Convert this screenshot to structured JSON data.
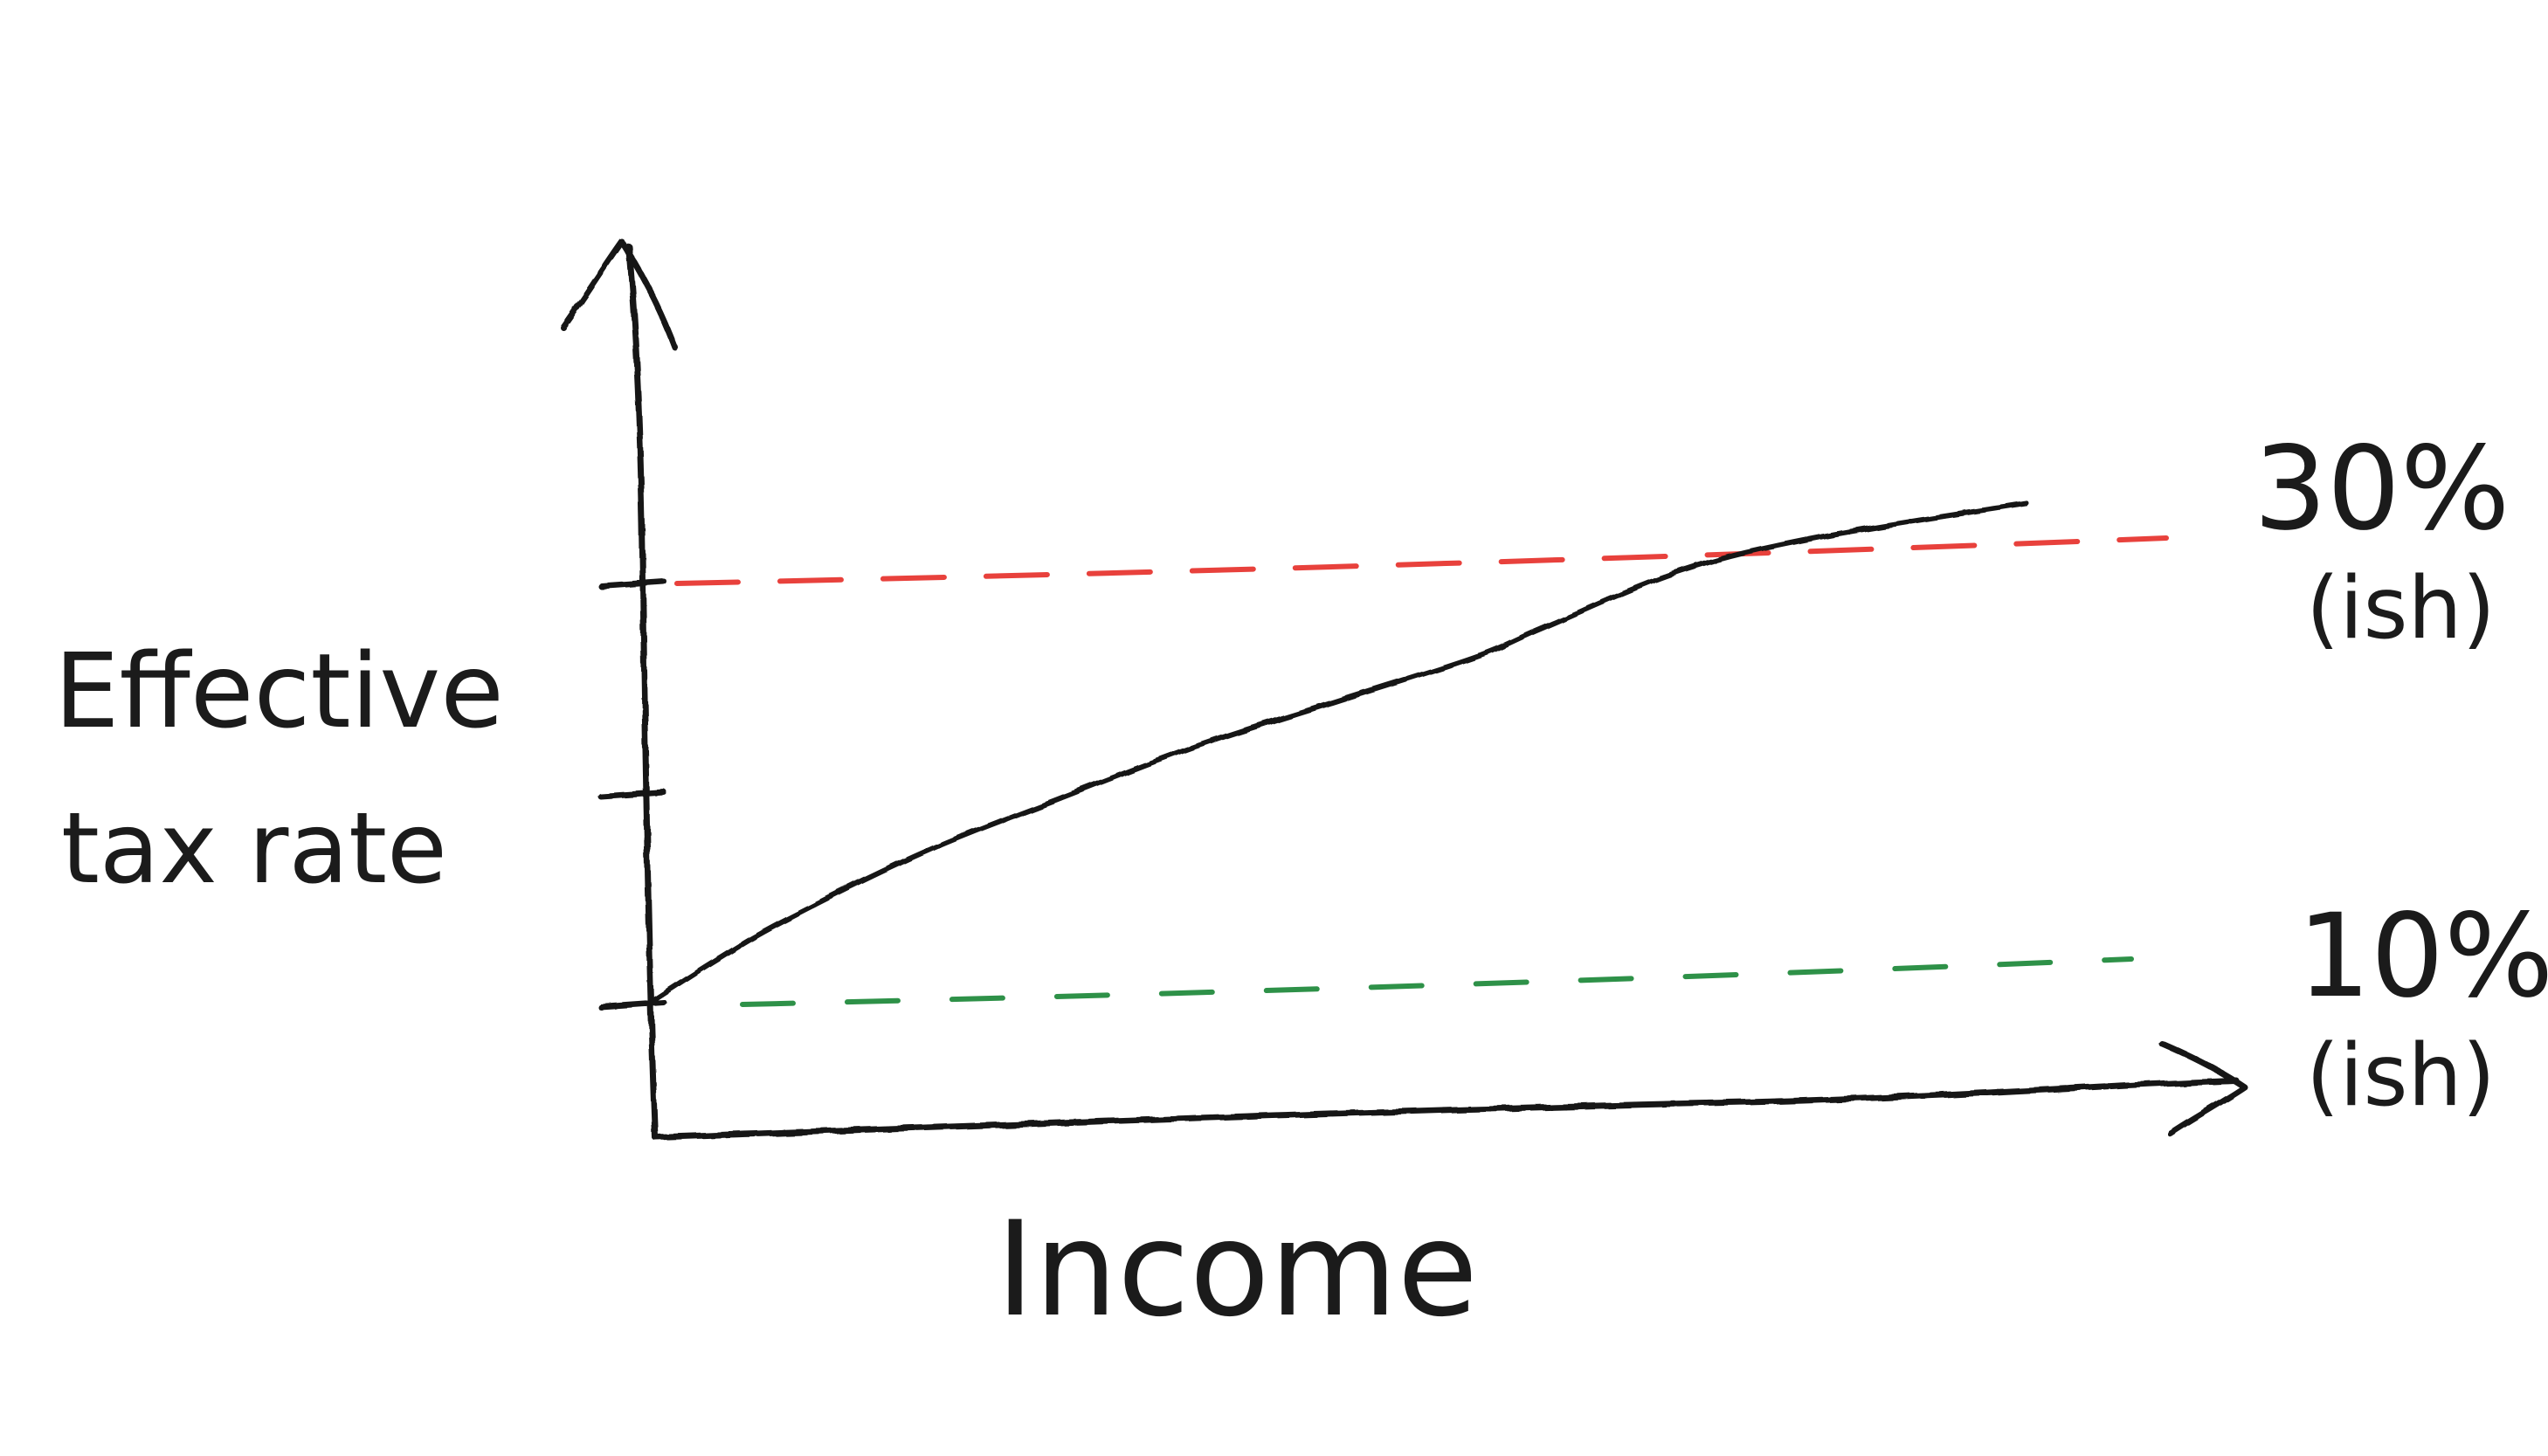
{
  "chart_data": {
    "type": "line",
    "xlabel": "Income",
    "ylabel_lines": [
      "Effective",
      "tax rate"
    ],
    "ylim": [
      0,
      40
    ],
    "y_ticks": [
      10,
      20,
      30
    ],
    "series": [
      {
        "x": [
          0,
          5,
          10,
          20,
          30,
          40,
          50,
          60,
          65,
          75,
          85,
          100
        ],
        "values": [
          10,
          12.1,
          14,
          17.2,
          19.8,
          22.3,
          24.4,
          26.5,
          27.9,
          30.6,
          32.2,
          33.8
        ],
        "color": "#161616"
      }
    ],
    "reference_lines": [
      {
        "name": "upper",
        "y": 30,
        "label": "30%",
        "sublabel": "(ish)",
        "color": "#e8413c"
      },
      {
        "name": "lower",
        "y": 10,
        "label": "10%",
        "sublabel": "(ish)",
        "color": "#2e9148"
      }
    ]
  }
}
